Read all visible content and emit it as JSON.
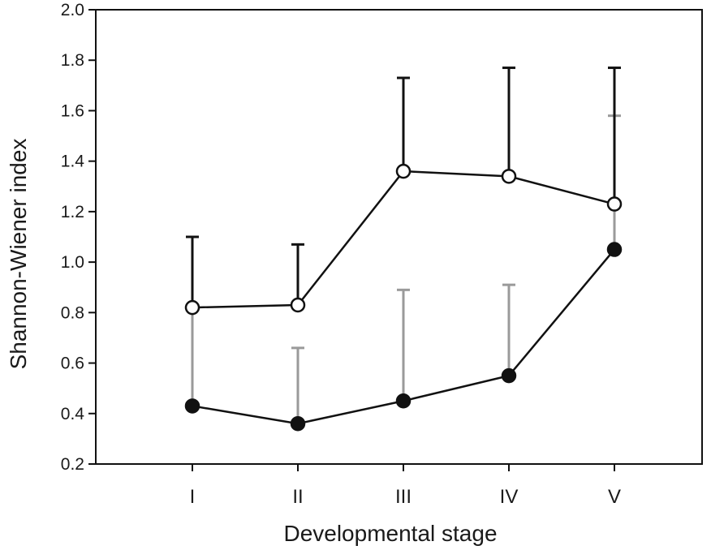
{
  "chart_data": {
    "type": "line",
    "title": "",
    "xlabel": "Developmental stage",
    "ylabel": "Shannon-Wiener index",
    "categories": [
      "I",
      "II",
      "III",
      "IV",
      "V"
    ],
    "ylim": [
      0.2,
      2.0
    ],
    "yticks": [
      0.2,
      0.4,
      0.6,
      0.8,
      1.0,
      1.2,
      1.4,
      1.6,
      1.8,
      2.0
    ],
    "ytick_labels": [
      "0.2",
      "0.4",
      "0.6",
      "0.8",
      "1.0",
      "1.2",
      "1.4",
      "1.6",
      "1.8",
      "2.0"
    ],
    "grid": false,
    "series": [
      {
        "marker": "open-circle",
        "color": "#111111",
        "error_color": "#111111",
        "values": [
          0.82,
          0.83,
          1.36,
          1.34,
          1.23
        ],
        "error_upper": [
          1.1,
          1.07,
          1.73,
          1.77,
          1.77
        ]
      },
      {
        "marker": "filled-circle",
        "color": "#111111",
        "error_color": "#9a9a9a",
        "values": [
          0.43,
          0.36,
          0.45,
          0.55,
          1.05
        ],
        "error_upper": [
          0.82,
          0.66,
          0.89,
          0.91,
          1.58
        ]
      }
    ]
  }
}
